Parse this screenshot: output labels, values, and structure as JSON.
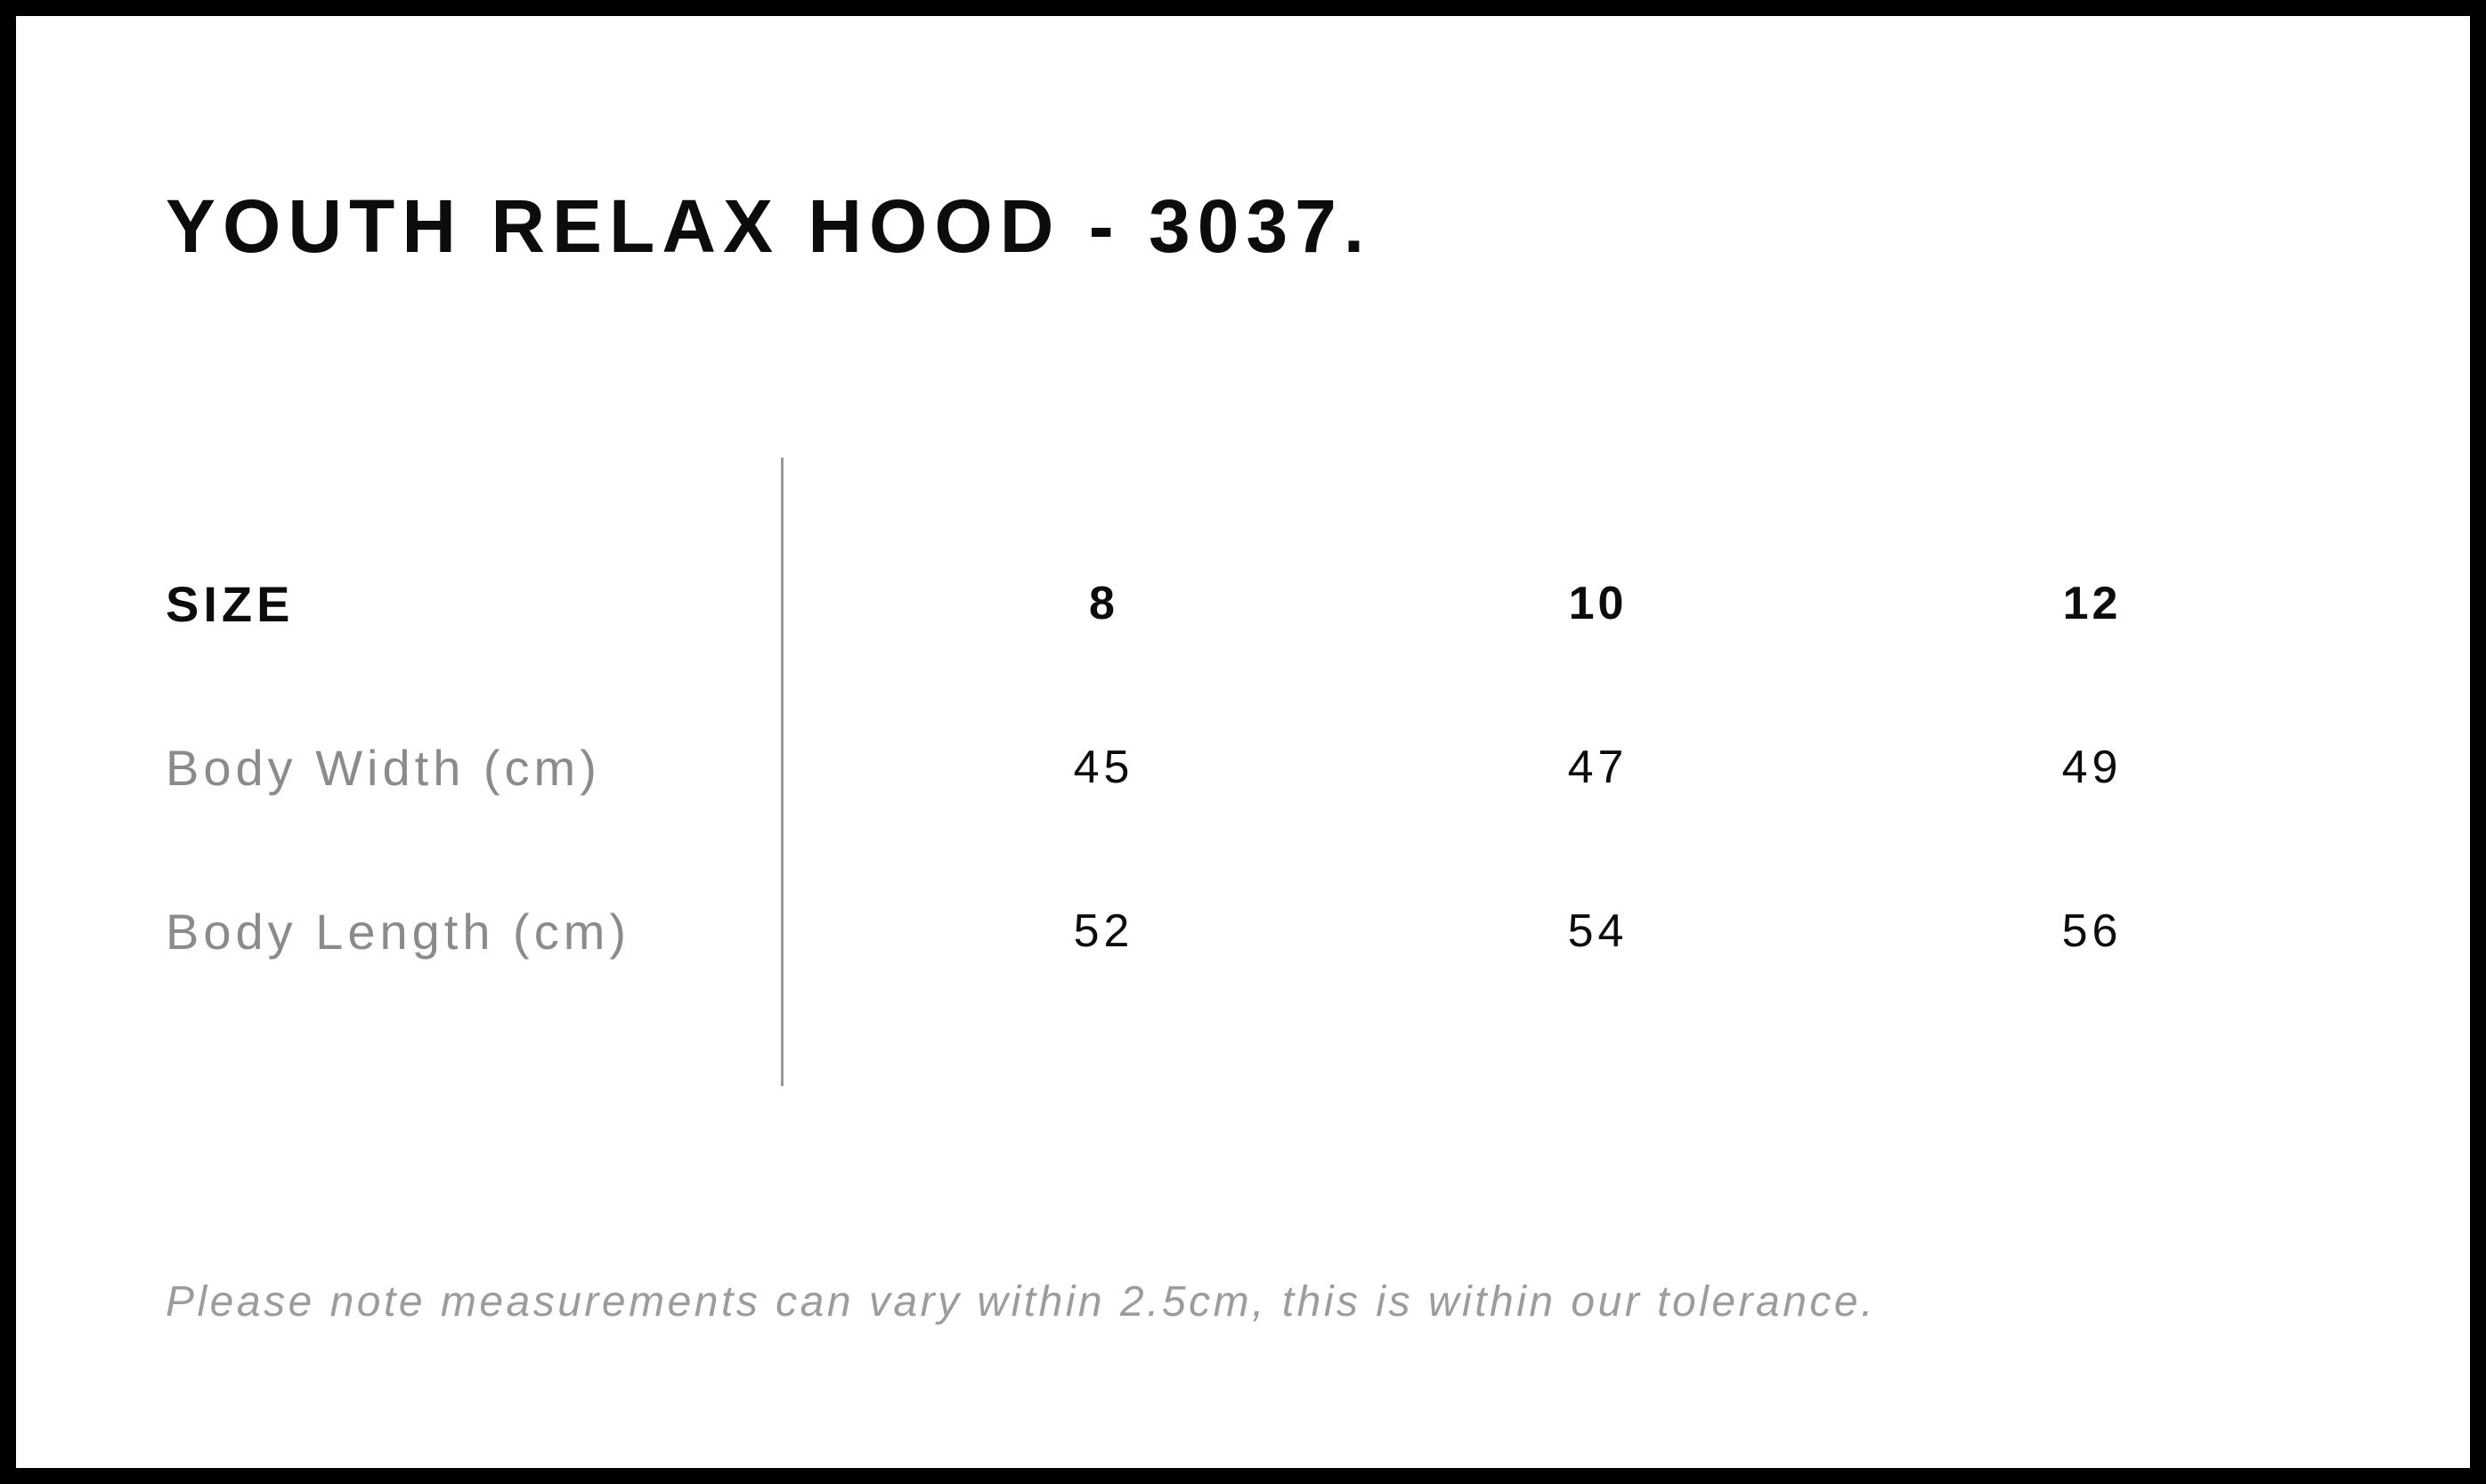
{
  "page": {
    "title": "YOUTH RELAX HOOD - 3037.",
    "note": "Please note measurements can vary within 2.5cm, this is within our tolerance."
  },
  "table": {
    "size_label": "SIZE",
    "columns": [
      "8",
      "10",
      "12"
    ],
    "rows": [
      {
        "label": "Body Width (cm)",
        "values": [
          "45",
          "47",
          "49"
        ]
      },
      {
        "label": "Body Length (cm)",
        "values": [
          "52",
          "54",
          "56"
        ]
      }
    ]
  },
  "chart_data": {
    "type": "table",
    "title": "YOUTH RELAX HOOD - 3037.",
    "columns": [
      "SIZE",
      "8",
      "10",
      "12"
    ],
    "rows": [
      [
        "Body Width (cm)",
        45,
        47,
        49
      ],
      [
        "Body Length (cm)",
        52,
        54,
        56
      ]
    ],
    "note": "Please note measurements can vary within 2.5cm, this is within our tolerance."
  },
  "colors": {
    "text_primary": "#0c0c0c",
    "label_gray": "#8b8b8b",
    "note_gray": "#9c9c9c",
    "divider_gray": "#9a9a9a",
    "frame_black": "#000000",
    "background": "#ffffff"
  }
}
